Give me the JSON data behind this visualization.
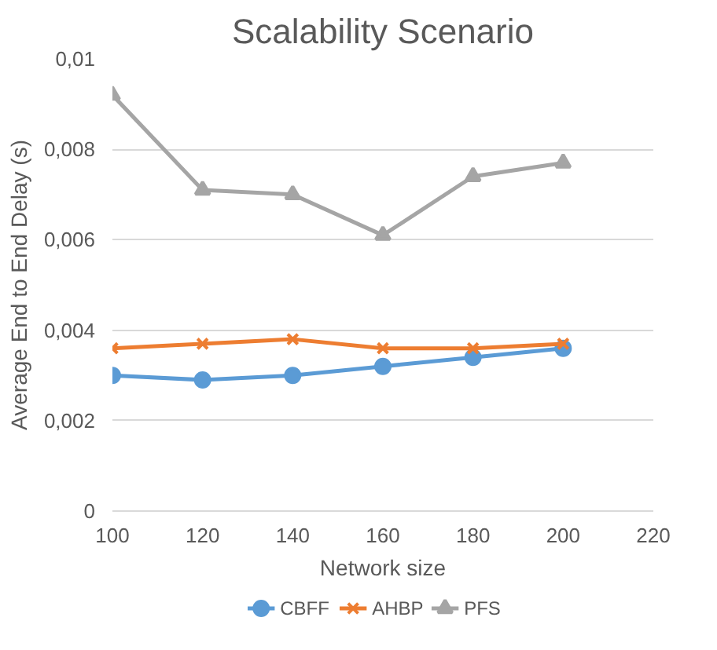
{
  "chart_data": {
    "type": "line",
    "title": "Scalability Scenario",
    "xlabel": "Network size",
    "ylabel": "Average End to End Delay (s)",
    "x": [
      100,
      120,
      140,
      160,
      180,
      200
    ],
    "series": [
      {
        "name": "CBFF",
        "color": "#5b9bd5",
        "marker": "circle",
        "values": [
          0.003,
          0.0029,
          0.003,
          0.0032,
          0.0034,
          0.0036
        ]
      },
      {
        "name": "AHBP",
        "color": "#ed7d31",
        "marker": "cross",
        "values": [
          0.0036,
          0.0037,
          0.0038,
          0.0036,
          0.0036,
          0.0037
        ]
      },
      {
        "name": "PFS",
        "color": "#a5a5a5",
        "marker": "triangle",
        "values": [
          0.0092,
          0.0071,
          0.007,
          0.0061,
          0.0074,
          0.0077
        ]
      }
    ],
    "xlim": [
      100,
      220
    ],
    "xticks": [
      100,
      120,
      140,
      160,
      180,
      200,
      220
    ],
    "ylim": [
      0,
      0.01
    ],
    "yticks": [
      {
        "value": 0,
        "label": "0"
      },
      {
        "value": 0.002,
        "label": "0,002"
      },
      {
        "value": 0.004,
        "label": "0,004"
      },
      {
        "value": 0.006,
        "label": "0,006"
      },
      {
        "value": 0.008,
        "label": "0,008"
      },
      {
        "value": 0.01,
        "label": "0,01"
      }
    ],
    "grid": "y",
    "legend": "bottom",
    "line_style": "solid"
  }
}
